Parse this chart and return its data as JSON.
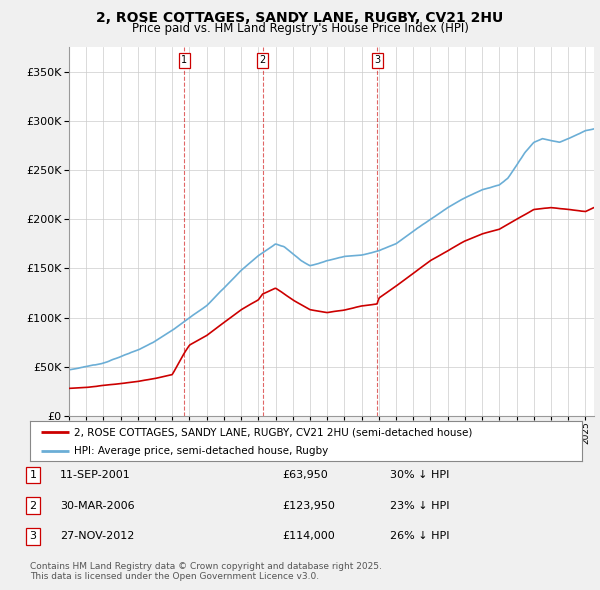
{
  "title_line1": "2, ROSE COTTAGES, SANDY LANE, RUGBY, CV21 2HU",
  "title_line2": "Price paid vs. HM Land Registry's House Price Index (HPI)",
  "legend_line1": "2, ROSE COTTAGES, SANDY LANE, RUGBY, CV21 2HU (semi-detached house)",
  "legend_line2": "HPI: Average price, semi-detached house, Rugby",
  "footnote": "Contains HM Land Registry data © Crown copyright and database right 2025.\nThis data is licensed under the Open Government Licence v3.0.",
  "transactions": [
    {
      "label": "1",
      "date": "11-SEP-2001",
      "price": 63950,
      "pct": "30% ↓ HPI",
      "x": 2001.7
    },
    {
      "label": "2",
      "date": "30-MAR-2006",
      "price": 123950,
      "pct": "23% ↓ HPI",
      "x": 2006.25
    },
    {
      "label": "3",
      "date": "27-NOV-2012",
      "price": 114000,
      "pct": "26% ↓ HPI",
      "x": 2012.9
    }
  ],
  "hpi_color": "#6baed6",
  "price_color": "#cc0000",
  "background_color": "#f0f0f0",
  "plot_bg_color": "#ffffff",
  "ylim": [
    0,
    375000
  ],
  "xlim_start": 1995.0,
  "xlim_end": 2025.5,
  "hpi_anchors_x": [
    1995,
    1996,
    1997,
    1998,
    1999,
    2000,
    2001,
    2002,
    2003,
    2004,
    2005,
    2006,
    2007,
    2007.5,
    2008,
    2008.5,
    2009,
    2009.5,
    2010,
    2011,
    2012,
    2013,
    2014,
    2015,
    2016,
    2017,
    2018,
    2019,
    2020,
    2020.5,
    2021,
    2021.5,
    2022,
    2022.5,
    2023,
    2023.5,
    2024,
    2024.5,
    2025,
    2025.5
  ],
  "hpi_anchors_y": [
    47000,
    50000,
    54000,
    60000,
    67000,
    76000,
    87000,
    100000,
    112000,
    130000,
    148000,
    163000,
    175000,
    172000,
    165000,
    158000,
    153000,
    155000,
    158000,
    162000,
    164000,
    168000,
    175000,
    188000,
    200000,
    212000,
    222000,
    230000,
    235000,
    242000,
    255000,
    268000,
    278000,
    282000,
    280000,
    278000,
    282000,
    286000,
    290000,
    292000
  ],
  "price_anchors_x": [
    1995,
    1996,
    1997,
    1998,
    1999,
    2000,
    2001,
    2001.7,
    2002,
    2003,
    2004,
    2005,
    2006,
    2006.25,
    2007,
    2008,
    2009,
    2010,
    2011,
    2012,
    2012.9,
    2013,
    2014,
    2015,
    2016,
    2017,
    2018,
    2019,
    2020,
    2021,
    2022,
    2023,
    2024,
    2025,
    2025.5
  ],
  "price_anchors_y": [
    28000,
    29000,
    31000,
    33000,
    35000,
    38000,
    42000,
    63950,
    72000,
    82000,
    95000,
    108000,
    118000,
    123950,
    130000,
    118000,
    108000,
    105000,
    108000,
    112000,
    114000,
    120000,
    132000,
    145000,
    158000,
    168000,
    178000,
    185000,
    190000,
    200000,
    210000,
    212000,
    210000,
    208000,
    212000
  ]
}
